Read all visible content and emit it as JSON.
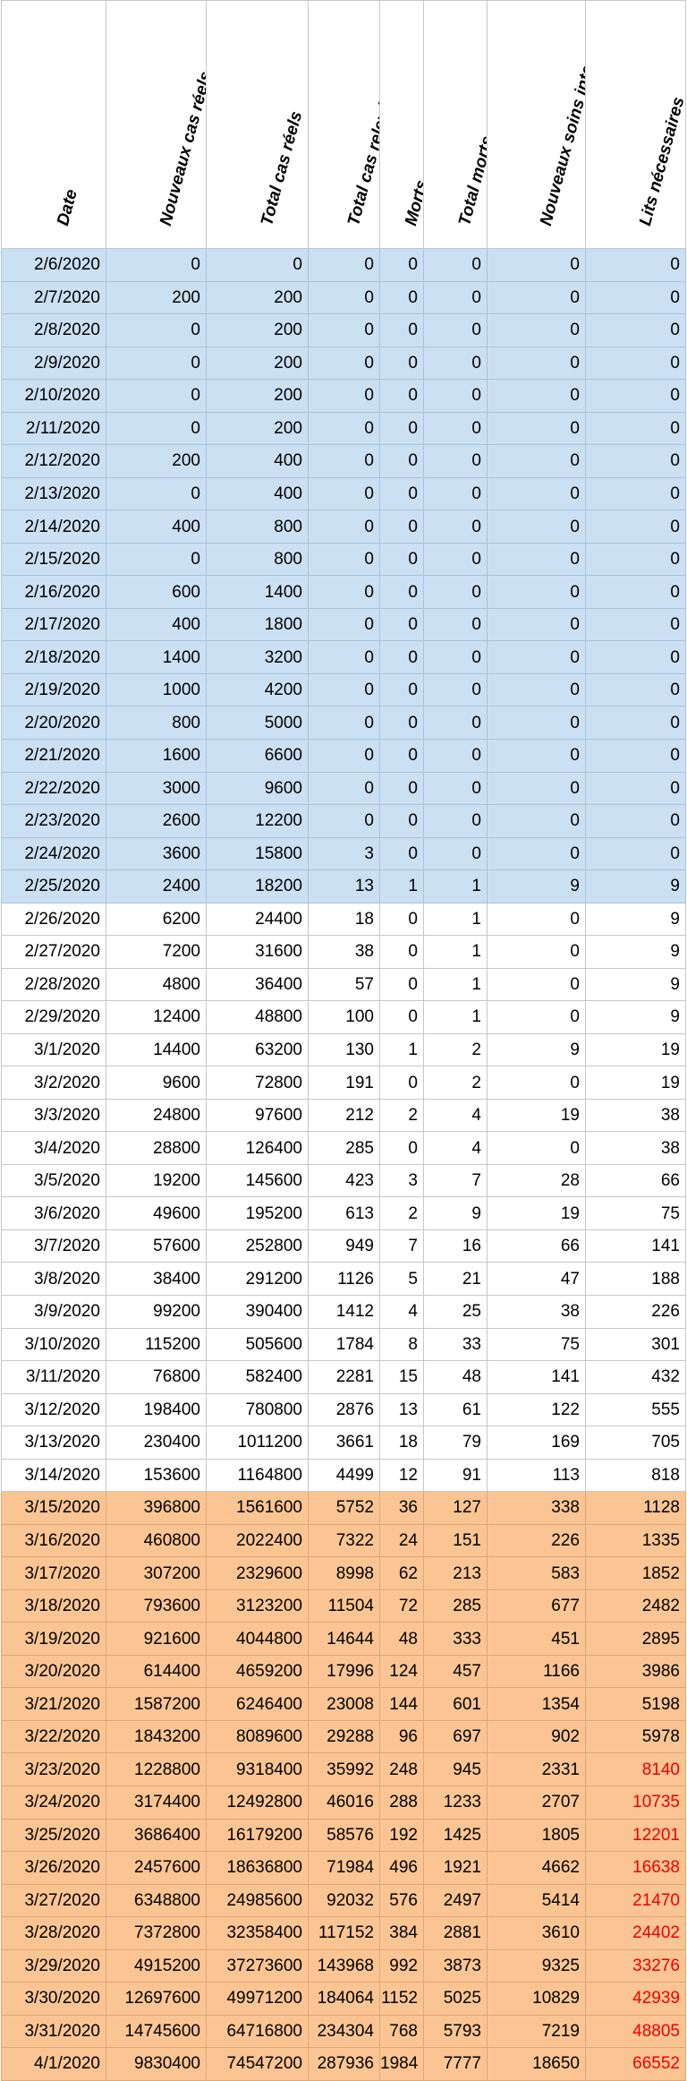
{
  "headers": [
    "Date",
    "Nouveaux cas réels",
    "Total cas réels",
    "Total cas relevés",
    "Morts",
    "Total morts",
    "Nouveaux soins intensifs",
    "Lits nécessaires"
  ],
  "column_widths": [
    117,
    112,
    114,
    80,
    49,
    71,
    110,
    112
  ],
  "colors": {
    "blue_fill": "#cce0f3",
    "orange_fill": "#fbc593",
    "red_text": "#ee0000"
  },
  "rows": [
    {
      "date": "2/6/2020",
      "cells": [
        "0",
        "0",
        "0",
        "0",
        "0",
        "0",
        "0"
      ],
      "band": "blue"
    },
    {
      "date": "2/7/2020",
      "cells": [
        "200",
        "200",
        "0",
        "0",
        "0",
        "0",
        "0"
      ],
      "band": "blue"
    },
    {
      "date": "2/8/2020",
      "cells": [
        "0",
        "200",
        "0",
        "0",
        "0",
        "0",
        "0"
      ],
      "band": "blue"
    },
    {
      "date": "2/9/2020",
      "cells": [
        "0",
        "200",
        "0",
        "0",
        "0",
        "0",
        "0"
      ],
      "band": "blue"
    },
    {
      "date": "2/10/2020",
      "cells": [
        "0",
        "200",
        "0",
        "0",
        "0",
        "0",
        "0"
      ],
      "band": "blue"
    },
    {
      "date": "2/11/2020",
      "cells": [
        "0",
        "200",
        "0",
        "0",
        "0",
        "0",
        "0"
      ],
      "band": "blue"
    },
    {
      "date": "2/12/2020",
      "cells": [
        "200",
        "400",
        "0",
        "0",
        "0",
        "0",
        "0"
      ],
      "band": "blue"
    },
    {
      "date": "2/13/2020",
      "cells": [
        "0",
        "400",
        "0",
        "0",
        "0",
        "0",
        "0"
      ],
      "band": "blue"
    },
    {
      "date": "2/14/2020",
      "cells": [
        "400",
        "800",
        "0",
        "0",
        "0",
        "0",
        "0"
      ],
      "band": "blue"
    },
    {
      "date": "2/15/2020",
      "cells": [
        "0",
        "800",
        "0",
        "0",
        "0",
        "0",
        "0"
      ],
      "band": "blue"
    },
    {
      "date": "2/16/2020",
      "cells": [
        "600",
        "1400",
        "0",
        "0",
        "0",
        "0",
        "0"
      ],
      "band": "blue"
    },
    {
      "date": "2/17/2020",
      "cells": [
        "400",
        "1800",
        "0",
        "0",
        "0",
        "0",
        "0"
      ],
      "band": "blue"
    },
    {
      "date": "2/18/2020",
      "cells": [
        "1400",
        "3200",
        "0",
        "0",
        "0",
        "0",
        "0"
      ],
      "band": "blue"
    },
    {
      "date": "2/19/2020",
      "cells": [
        "1000",
        "4200",
        "0",
        "0",
        "0",
        "0",
        "0"
      ],
      "band": "blue"
    },
    {
      "date": "2/20/2020",
      "cells": [
        "800",
        "5000",
        "0",
        "0",
        "0",
        "0",
        "0"
      ],
      "band": "blue"
    },
    {
      "date": "2/21/2020",
      "cells": [
        "1600",
        "6600",
        "0",
        "0",
        "0",
        "0",
        "0"
      ],
      "band": "blue"
    },
    {
      "date": "2/22/2020",
      "cells": [
        "3000",
        "9600",
        "0",
        "0",
        "0",
        "0",
        "0"
      ],
      "band": "blue"
    },
    {
      "date": "2/23/2020",
      "cells": [
        "2600",
        "12200",
        "0",
        "0",
        "0",
        "0",
        "0"
      ],
      "band": "blue"
    },
    {
      "date": "2/24/2020",
      "cells": [
        "3600",
        "15800",
        "3",
        "0",
        "0",
        "0",
        "0"
      ],
      "band": "blue"
    },
    {
      "date": "2/25/2020",
      "cells": [
        "2400",
        "18200",
        "13",
        "1",
        "1",
        "9",
        "9"
      ],
      "band": "blue"
    },
    {
      "date": "2/26/2020",
      "cells": [
        "6200",
        "24400",
        "18",
        "0",
        "1",
        "0",
        "9"
      ],
      "band": "white"
    },
    {
      "date": "2/27/2020",
      "cells": [
        "7200",
        "31600",
        "38",
        "0",
        "1",
        "0",
        "9"
      ],
      "band": "white"
    },
    {
      "date": "2/28/2020",
      "cells": [
        "4800",
        "36400",
        "57",
        "0",
        "1",
        "0",
        "9"
      ],
      "band": "white"
    },
    {
      "date": "2/29/2020",
      "cells": [
        "12400",
        "48800",
        "100",
        "0",
        "1",
        "0",
        "9"
      ],
      "band": "white"
    },
    {
      "date": "3/1/2020",
      "cells": [
        "14400",
        "63200",
        "130",
        "1",
        "2",
        "9",
        "19"
      ],
      "band": "white"
    },
    {
      "date": "3/2/2020",
      "cells": [
        "9600",
        "72800",
        "191",
        "0",
        "2",
        "0",
        "19"
      ],
      "band": "white"
    },
    {
      "date": "3/3/2020",
      "cells": [
        "24800",
        "97600",
        "212",
        "2",
        "4",
        "19",
        "38"
      ],
      "band": "white"
    },
    {
      "date": "3/4/2020",
      "cells": [
        "28800",
        "126400",
        "285",
        "0",
        "4",
        "0",
        "38"
      ],
      "band": "white"
    },
    {
      "date": "3/5/2020",
      "cells": [
        "19200",
        "145600",
        "423",
        "3",
        "7",
        "28",
        "66"
      ],
      "band": "white"
    },
    {
      "date": "3/6/2020",
      "cells": [
        "49600",
        "195200",
        "613",
        "2",
        "9",
        "19",
        "75"
      ],
      "band": "white"
    },
    {
      "date": "3/7/2020",
      "cells": [
        "57600",
        "252800",
        "949",
        "7",
        "16",
        "66",
        "141"
      ],
      "band": "white"
    },
    {
      "date": "3/8/2020",
      "cells": [
        "38400",
        "291200",
        "1126",
        "5",
        "21",
        "47",
        "188"
      ],
      "band": "white"
    },
    {
      "date": "3/9/2020",
      "cells": [
        "99200",
        "390400",
        "1412",
        "4",
        "25",
        "38",
        "226"
      ],
      "band": "white"
    },
    {
      "date": "3/10/2020",
      "cells": [
        "115200",
        "505600",
        "1784",
        "8",
        "33",
        "75",
        "301"
      ],
      "band": "white"
    },
    {
      "date": "3/11/2020",
      "cells": [
        "76800",
        "582400",
        "2281",
        "15",
        "48",
        "141",
        "432"
      ],
      "band": "white"
    },
    {
      "date": "3/12/2020",
      "cells": [
        "198400",
        "780800",
        "2876",
        "13",
        "61",
        "122",
        "555"
      ],
      "band": "white"
    },
    {
      "date": "3/13/2020",
      "cells": [
        "230400",
        "1011200",
        "3661",
        "18",
        "79",
        "169",
        "705"
      ],
      "band": "white"
    },
    {
      "date": "3/14/2020",
      "cells": [
        "153600",
        "1164800",
        "4499",
        "12",
        "91",
        "113",
        "818"
      ],
      "band": "white"
    },
    {
      "date": "3/15/2020",
      "cells": [
        "396800",
        "1561600",
        "5752",
        "36",
        "127",
        "338",
        "1128"
      ],
      "band": "orange"
    },
    {
      "date": "3/16/2020",
      "cells": [
        "460800",
        "2022400",
        "7322",
        "24",
        "151",
        "226",
        "1335"
      ],
      "band": "orange"
    },
    {
      "date": "3/17/2020",
      "cells": [
        "307200",
        "2329600",
        "8998",
        "62",
        "213",
        "583",
        "1852"
      ],
      "band": "orange"
    },
    {
      "date": "3/18/2020",
      "cells": [
        "793600",
        "3123200",
        "11504",
        "72",
        "285",
        "677",
        "2482"
      ],
      "band": "orange"
    },
    {
      "date": "3/19/2020",
      "cells": [
        "921600",
        "4044800",
        "14644",
        "48",
        "333",
        "451",
        "2895"
      ],
      "band": "orange"
    },
    {
      "date": "3/20/2020",
      "cells": [
        "614400",
        "4659200",
        "17996",
        "124",
        "457",
        "1166",
        "3986"
      ],
      "band": "orange"
    },
    {
      "date": "3/21/2020",
      "cells": [
        "1587200",
        "6246400",
        "23008",
        "144",
        "601",
        "1354",
        "5198"
      ],
      "band": "orange"
    },
    {
      "date": "3/22/2020",
      "cells": [
        "1843200",
        "8089600",
        "29288",
        "96",
        "697",
        "902",
        "5978"
      ],
      "band": "orange"
    },
    {
      "date": "3/23/2020",
      "cells": [
        "1228800",
        "9318400",
        "35992",
        "248",
        "945",
        "2331",
        "8140"
      ],
      "band": "orange",
      "red_last": true
    },
    {
      "date": "3/24/2020",
      "cells": [
        "3174400",
        "12492800",
        "46016",
        "288",
        "1233",
        "2707",
        "10735"
      ],
      "band": "orange",
      "red_last": true
    },
    {
      "date": "3/25/2020",
      "cells": [
        "3686400",
        "16179200",
        "58576",
        "192",
        "1425",
        "1805",
        "12201"
      ],
      "band": "orange",
      "red_last": true
    },
    {
      "date": "3/26/2020",
      "cells": [
        "2457600",
        "18636800",
        "71984",
        "496",
        "1921",
        "4662",
        "16638"
      ],
      "band": "orange",
      "red_last": true
    },
    {
      "date": "3/27/2020",
      "cells": [
        "6348800",
        "24985600",
        "92032",
        "576",
        "2497",
        "5414",
        "21470"
      ],
      "band": "orange",
      "red_last": true
    },
    {
      "date": "3/28/2020",
      "cells": [
        "7372800",
        "32358400",
        "117152",
        "384",
        "2881",
        "3610",
        "24402"
      ],
      "band": "orange",
      "red_last": true
    },
    {
      "date": "3/29/2020",
      "cells": [
        "4915200",
        "37273600",
        "143968",
        "992",
        "3873",
        "9325",
        "33276"
      ],
      "band": "orange",
      "red_last": true
    },
    {
      "date": "3/30/2020",
      "cells": [
        "12697600",
        "49971200",
        "184064",
        "1152",
        "5025",
        "10829",
        "42939"
      ],
      "band": "orange",
      "red_last": true
    },
    {
      "date": "3/31/2020",
      "cells": [
        "14745600",
        "64716800",
        "234304",
        "768",
        "5793",
        "7219",
        "48805"
      ],
      "band": "orange",
      "red_last": true
    },
    {
      "date": "4/1/2020",
      "cells": [
        "9830400",
        "74547200",
        "287936",
        "1984",
        "7777",
        "18650",
        "66552"
      ],
      "band": "orange",
      "red_last": true
    }
  ]
}
